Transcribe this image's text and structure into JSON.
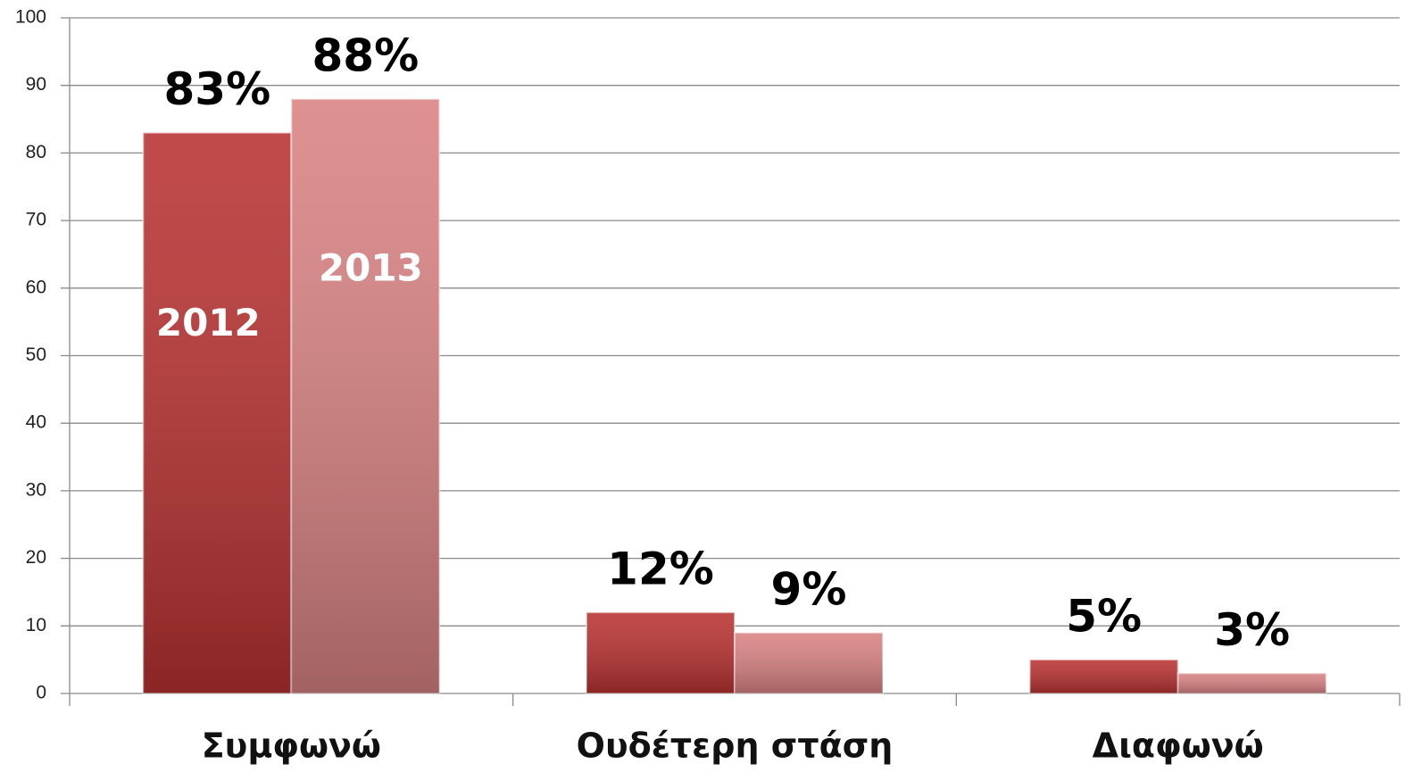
{
  "chart_data": {
    "type": "bar",
    "categories": [
      "Συμφωνώ",
      "Ουδέτερη στάση",
      "Διαφωνώ"
    ],
    "series": [
      {
        "name": "2012",
        "color": "#b83231",
        "values": [
          83,
          12,
          5
        ],
        "value_labels": [
          "83%",
          "12%",
          "5%"
        ]
      },
      {
        "name": "2013",
        "color": "#d98282",
        "values": [
          88,
          9,
          3
        ],
        "value_labels": [
          "88%",
          "9%",
          "3%"
        ]
      }
    ],
    "ylim": [
      0,
      100
    ],
    "yticks": [
      0,
      10,
      20,
      30,
      40,
      50,
      60,
      70,
      80,
      90,
      100
    ],
    "grid": true
  }
}
